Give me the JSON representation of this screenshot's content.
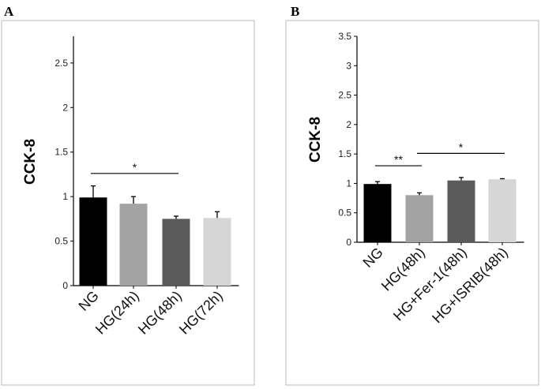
{
  "chart_data": [
    {
      "panel": "A",
      "type": "bar",
      "ylabel": "CCK-8",
      "ylim": [
        0,
        2.8
      ],
      "yticks": [
        "0",
        "0.5",
        "1",
        "1.5",
        "2",
        "2.5"
      ],
      "categories": [
        "NG",
        "HG(24h)",
        "HG(48h)",
        "HG(72h)"
      ],
      "values": [
        0.99,
        0.92,
        0.75,
        0.76
      ],
      "errors": [
        0.13,
        0.08,
        0.03,
        0.07
      ],
      "colors": [
        "#000000",
        "#a3a3a3",
        "#5b5b5b",
        "#d6d6d6"
      ],
      "significance": [
        {
          "from": 0,
          "to": 2,
          "y": 1.26,
          "label": "*"
        }
      ]
    },
    {
      "panel": "B",
      "type": "bar",
      "ylabel": "CCK-8",
      "ylim": [
        0,
        3.5
      ],
      "yticks": [
        "0",
        "0.5",
        "1",
        "1.5",
        "2",
        "2.5",
        "3",
        "3.5"
      ],
      "categories": [
        "NG",
        "HG(48h)",
        "HG+Fer-1(48h)",
        "HG+ISRIB(48h)"
      ],
      "values": [
        0.99,
        0.8,
        1.05,
        1.07
      ],
      "errors": [
        0.04,
        0.04,
        0.05,
        0.01
      ],
      "colors": [
        "#000000",
        "#a3a3a3",
        "#5b5b5b",
        "#d6d6d6"
      ],
      "significance": [
        {
          "from": 0,
          "to": 1,
          "y": 1.3,
          "label": "**"
        },
        {
          "from": 1,
          "to": 3,
          "y": 1.51,
          "label": "*"
        }
      ]
    }
  ]
}
